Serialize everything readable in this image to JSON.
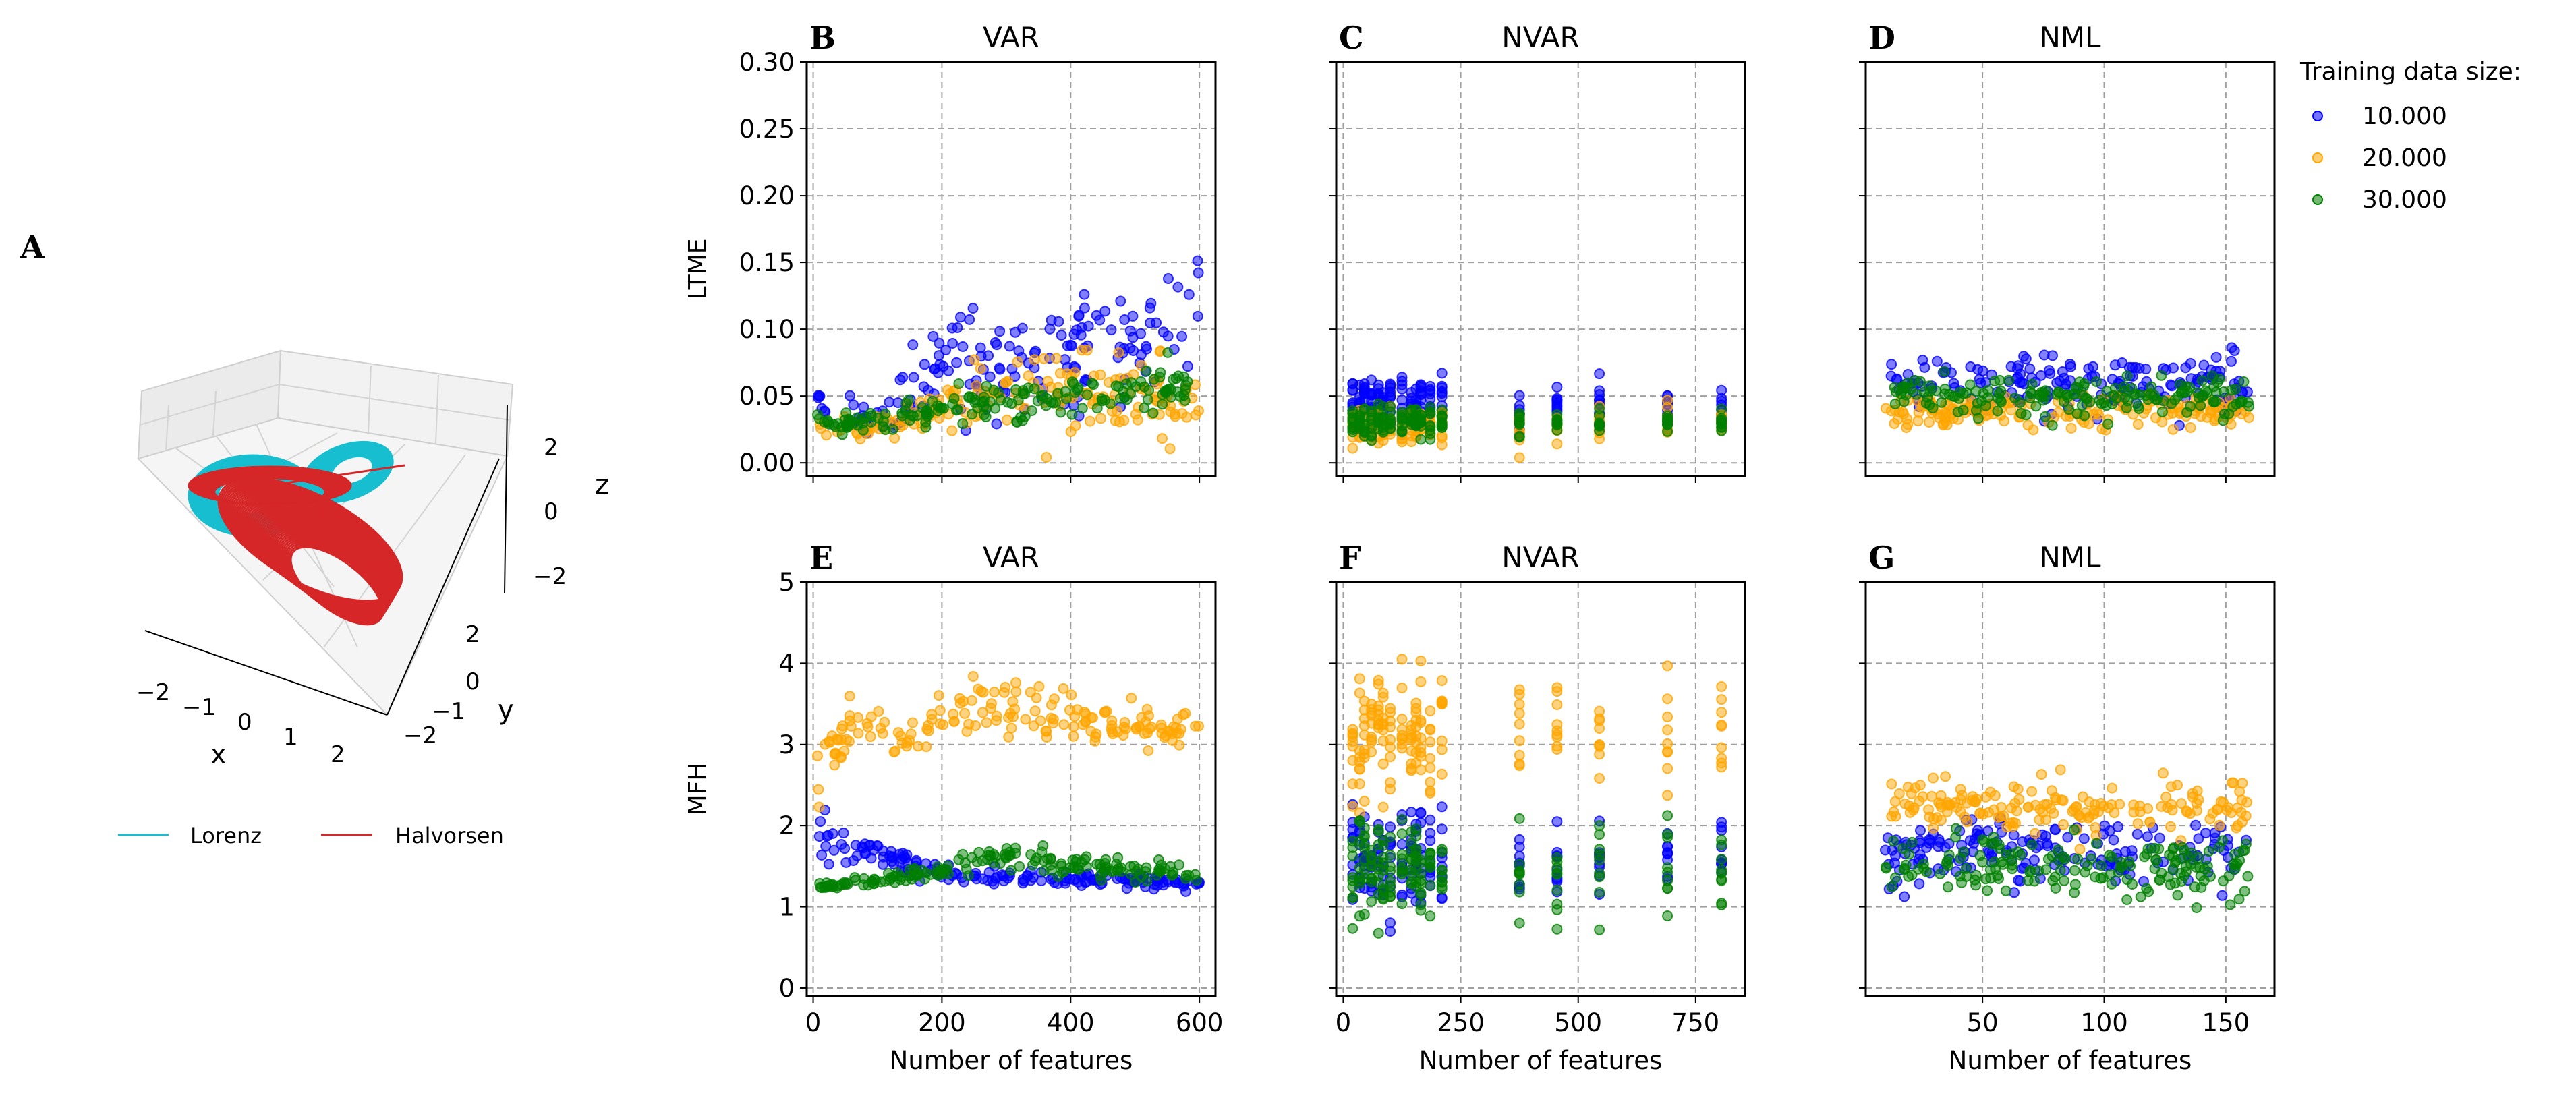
{
  "colors": {
    "blue": "#0000ff",
    "orange": "#ffa500",
    "green": "#008000",
    "lorenz": "#17becf",
    "halvorsen": "#d62728",
    "grid": "#a0a0a0"
  },
  "legend": {
    "title": "Training data size:",
    "entries": [
      "10.000",
      "20.000",
      "30.000"
    ]
  },
  "panel_a": {
    "letter": "A",
    "xlabel": "x",
    "ylabel": "y",
    "zlabel": "z",
    "xticks": [
      "−2",
      "−1",
      "0",
      "1",
      "2"
    ],
    "yticks": [
      "−2",
      "−1",
      "0",
      "2"
    ],
    "zticks": [
      "2",
      "0",
      "−2"
    ],
    "legend": [
      "Lorenz",
      "Halvorsen"
    ]
  },
  "chart_data": [
    {
      "type": "scatter",
      "letter": "B",
      "title": "VAR",
      "ylabel": "LTME",
      "xlabel": "",
      "xlim": [
        -10,
        625
      ],
      "ylim": [
        -0.01,
        0.3
      ],
      "xticks": [
        0,
        200,
        400,
        600
      ],
      "xticklabels": [],
      "yticks": [
        0.0,
        0.05,
        0.1,
        0.15,
        0.2,
        0.25,
        0.3
      ],
      "yticklabels": [
        "0.00",
        "0.05",
        "0.10",
        "0.15",
        "0.20",
        "0.25",
        "0.30"
      ],
      "xrange": [
        5,
        600
      ],
      "series": [
        {
          "name": "10.000",
          "color": "blue",
          "segments": [
            [
              0,
              0.045,
              0.006
            ],
            [
              100,
              0.03,
              0.008
            ],
            [
              200,
              0.07,
              0.02
            ],
            [
              400,
              0.075,
              0.022
            ],
            [
              600,
              0.11,
              0.025
            ]
          ]
        },
        {
          "name": "20.000",
          "color": "orange",
          "segments": [
            [
              0,
              0.03,
              0.004
            ],
            [
              100,
              0.025,
              0.004
            ],
            [
              250,
              0.05,
              0.012
            ],
            [
              400,
              0.055,
              0.015
            ],
            [
              600,
              0.045,
              0.012
            ]
          ]
        },
        {
          "name": "30.000",
          "color": "green",
          "segments": [
            [
              0,
              0.03,
              0.003
            ],
            [
              100,
              0.03,
              0.004
            ],
            [
              250,
              0.045,
              0.008
            ],
            [
              400,
              0.05,
              0.008
            ],
            [
              600,
              0.055,
              0.009
            ]
          ]
        }
      ]
    },
    {
      "type": "scatter",
      "letter": "C",
      "title": "NVAR",
      "ylabel": "",
      "xlabel": "",
      "xlim": [
        -15,
        855
      ],
      "ylim": [
        -0.01,
        0.3
      ],
      "xticks": [
        0,
        250,
        500,
        750
      ],
      "xticklabels": [],
      "yticks": [
        0.0,
        0.05,
        0.1,
        0.15,
        0.2,
        0.25,
        0.3
      ],
      "yticklabels": [],
      "xcolumns": [
        20,
        35,
        45,
        60,
        75,
        85,
        100,
        125,
        145,
        155,
        165,
        185,
        210,
        375,
        455,
        545,
        690,
        805
      ],
      "series": [
        {
          "name": "10.000",
          "color": "blue",
          "segments": [
            [
              0,
              0.045,
              0.009
            ],
            [
              850,
              0.045,
              0.009
            ]
          ]
        },
        {
          "name": "20.000",
          "color": "orange",
          "segments": [
            [
              0,
              0.028,
              0.006
            ],
            [
              850,
              0.028,
              0.006
            ]
          ]
        },
        {
          "name": "30.000",
          "color": "green",
          "segments": [
            [
              0,
              0.03,
              0.006
            ],
            [
              850,
              0.03,
              0.006
            ]
          ]
        }
      ]
    },
    {
      "type": "scatter",
      "letter": "D",
      "title": "NML",
      "ylabel": "",
      "xlabel": "",
      "xlim": [
        2,
        170
      ],
      "ylim": [
        -0.01,
        0.3
      ],
      "xticks": [
        50,
        100,
        150
      ],
      "xticklabels": [],
      "yticks": [
        0.0,
        0.05,
        0.1,
        0.15,
        0.2,
        0.25,
        0.3
      ],
      "yticklabels": [],
      "xrange": [
        10,
        160
      ],
      "series": [
        {
          "name": "10.000",
          "color": "blue",
          "segments": [
            [
              0,
              0.06,
              0.011
            ],
            [
              170,
              0.06,
              0.011
            ]
          ]
        },
        {
          "name": "20.000",
          "color": "orange",
          "segments": [
            [
              0,
              0.038,
              0.006
            ],
            [
              170,
              0.038,
              0.006
            ]
          ]
        },
        {
          "name": "30.000",
          "color": "green",
          "segments": [
            [
              0,
              0.05,
              0.007
            ],
            [
              170,
              0.05,
              0.007
            ]
          ]
        }
      ]
    },
    {
      "type": "scatter",
      "letter": "E",
      "title": "VAR",
      "ylabel": "MFH",
      "xlabel": "Number of features",
      "xlim": [
        -10,
        625
      ],
      "ylim": [
        -0.1,
        5.0
      ],
      "xticks": [
        0,
        200,
        400,
        600
      ],
      "xticklabels": [
        "0",
        "200",
        "400",
        "600"
      ],
      "yticks": [
        0,
        1,
        2,
        3,
        4,
        5
      ],
      "yticklabels": [
        "0",
        "1",
        "2",
        "3",
        "4",
        "5"
      ],
      "xrange": [
        5,
        600
      ],
      "series": [
        {
          "name": "10.000",
          "color": "blue",
          "segments": [
            [
              0,
              1.9,
              0.18
            ],
            [
              100,
              1.65,
              0.08
            ],
            [
              200,
              1.4,
              0.05
            ],
            [
              600,
              1.3,
              0.03
            ]
          ]
        },
        {
          "name": "20.000",
          "color": "orange",
          "segments": [
            [
              0,
              2.6,
              0.2
            ],
            [
              80,
              3.4,
              0.15
            ],
            [
              130,
              3.0,
              0.1
            ],
            [
              260,
              3.5,
              0.2
            ],
            [
              400,
              3.25,
              0.15
            ],
            [
              600,
              3.2,
              0.1
            ]
          ]
        },
        {
          "name": "30.000",
          "color": "green",
          "segments": [
            [
              0,
              1.25,
              0.02
            ],
            [
              100,
              1.3,
              0.03
            ],
            [
              200,
              1.45,
              0.06
            ],
            [
              280,
              1.65,
              0.09
            ],
            [
              400,
              1.5,
              0.07
            ],
            [
              600,
              1.4,
              0.05
            ]
          ]
        }
      ]
    },
    {
      "type": "scatter",
      "letter": "F",
      "title": "NVAR",
      "ylabel": "",
      "xlabel": "Number of features",
      "xlim": [
        -15,
        855
      ],
      "ylim": [
        -0.1,
        5.0
      ],
      "xticks": [
        0,
        250,
        500,
        750
      ],
      "xticklabels": [
        "0",
        "250",
        "500",
        "750"
      ],
      "yticks": [
        0,
        1,
        2,
        3,
        4,
        5
      ],
      "yticklabels": [],
      "xcolumns": [
        20,
        35,
        45,
        60,
        75,
        85,
        100,
        125,
        145,
        155,
        165,
        185,
        210,
        375,
        455,
        545,
        690,
        805
      ],
      "series": [
        {
          "name": "10.000",
          "color": "blue",
          "segments": [
            [
              0,
              1.6,
              0.3
            ],
            [
              850,
              1.6,
              0.3
            ]
          ]
        },
        {
          "name": "20.000",
          "color": "orange",
          "segments": [
            [
              0,
              3.05,
              0.35
            ],
            [
              850,
              3.05,
              0.35
            ]
          ]
        },
        {
          "name": "30.000",
          "color": "green",
          "segments": [
            [
              0,
              1.45,
              0.3
            ],
            [
              850,
              1.45,
              0.3
            ]
          ]
        }
      ]
    },
    {
      "type": "scatter",
      "letter": "G",
      "title": "NML",
      "ylabel": "",
      "xlabel": "Number of features",
      "xlim": [
        2,
        170
      ],
      "ylim": [
        -0.1,
        5.0
      ],
      "xticks": [
        50,
        100,
        150
      ],
      "xticklabels": [
        "50",
        "100",
        "150"
      ],
      "yticks": [
        0,
        1,
        2,
        3,
        4,
        5
      ],
      "yticklabels": [],
      "xrange": [
        10,
        160
      ],
      "series": [
        {
          "name": "10.000",
          "color": "blue",
          "segments": [
            [
              0,
              1.7,
              0.22
            ],
            [
              170,
              1.7,
              0.22
            ]
          ]
        },
        {
          "name": "20.000",
          "color": "orange",
          "segments": [
            [
              0,
              2.25,
              0.16
            ],
            [
              170,
              2.25,
              0.16
            ]
          ]
        },
        {
          "name": "30.000",
          "color": "green",
          "segments": [
            [
              0,
              1.5,
              0.17
            ],
            [
              170,
              1.5,
              0.17
            ]
          ]
        }
      ]
    }
  ]
}
